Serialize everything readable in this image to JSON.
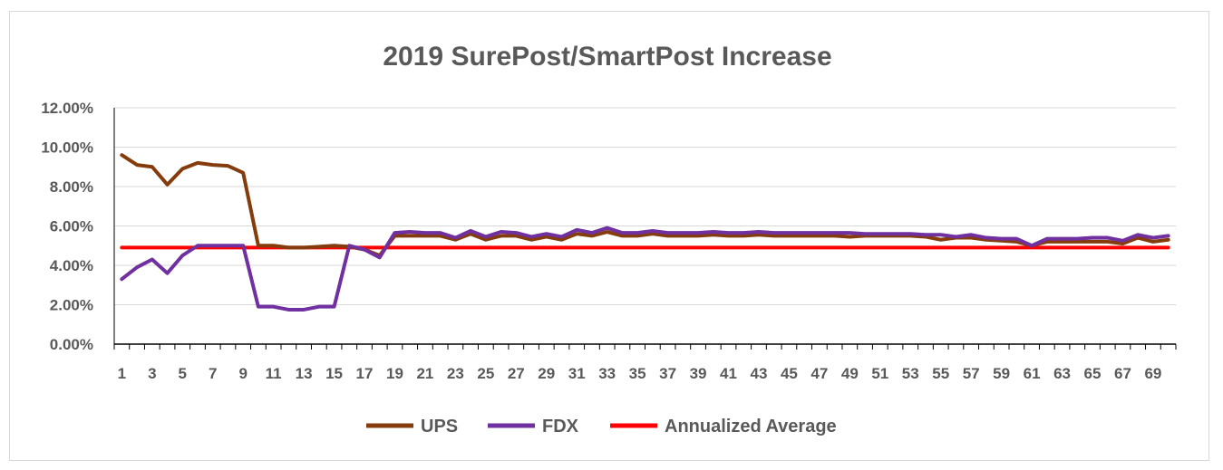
{
  "chart_data": {
    "type": "line",
    "title": "2019 SurePost/SmartPost Increase",
    "xlabel": "",
    "ylabel": "",
    "x_tick_labels": [
      "1",
      "3",
      "5",
      "7",
      "9",
      "11",
      "13",
      "15",
      "17",
      "19",
      "21",
      "23",
      "25",
      "27",
      "29",
      "31",
      "33",
      "35",
      "37",
      "39",
      "41",
      "43",
      "45",
      "47",
      "49",
      "51",
      "53",
      "55",
      "57",
      "59",
      "61",
      "63",
      "65",
      "67",
      "69"
    ],
    "y_tick_labels": [
      "0.00%",
      "2.00%",
      "4.00%",
      "6.00%",
      "8.00%",
      "10.00%",
      "12.00%"
    ],
    "ylim": [
      0,
      12
    ],
    "x": [
      1,
      2,
      3,
      4,
      5,
      6,
      7,
      8,
      9,
      10,
      11,
      12,
      13,
      14,
      15,
      16,
      17,
      18,
      19,
      20,
      21,
      22,
      23,
      24,
      25,
      26,
      27,
      28,
      29,
      30,
      31,
      32,
      33,
      34,
      35,
      36,
      37,
      38,
      39,
      40,
      41,
      42,
      43,
      44,
      45,
      46,
      47,
      48,
      49,
      50,
      51,
      52,
      53,
      54,
      55,
      56,
      57,
      58,
      59,
      60,
      61,
      62,
      63,
      64,
      65,
      66,
      67,
      68,
      69,
      70
    ],
    "series": [
      {
        "name": "UPS",
        "color": "#843c0c",
        "values": [
          9.6,
          9.1,
          9.0,
          8.1,
          8.9,
          9.2,
          9.1,
          9.05,
          8.7,
          5.0,
          5.0,
          4.9,
          4.9,
          4.95,
          5.0,
          4.95,
          4.8,
          4.5,
          5.5,
          5.5,
          5.5,
          5.5,
          5.3,
          5.6,
          5.3,
          5.5,
          5.5,
          5.3,
          5.45,
          5.3,
          5.6,
          5.5,
          5.7,
          5.5,
          5.5,
          5.6,
          5.5,
          5.5,
          5.5,
          5.55,
          5.5,
          5.5,
          5.55,
          5.5,
          5.5,
          5.5,
          5.5,
          5.5,
          5.45,
          5.5,
          5.5,
          5.5,
          5.5,
          5.45,
          5.3,
          5.4,
          5.4,
          5.3,
          5.25,
          5.2,
          5.0,
          5.2,
          5.2,
          5.2,
          5.2,
          5.2,
          5.1,
          5.4,
          5.2,
          5.3
        ]
      },
      {
        "name": "FDX",
        "color": "#7030a0",
        "values": [
          3.3,
          3.9,
          4.3,
          3.6,
          4.5,
          5.0,
          5.0,
          5.0,
          5.0,
          1.9,
          1.9,
          1.75,
          1.75,
          1.9,
          1.9,
          5.0,
          4.8,
          4.4,
          5.65,
          5.7,
          5.65,
          5.65,
          5.4,
          5.75,
          5.45,
          5.7,
          5.65,
          5.45,
          5.6,
          5.45,
          5.8,
          5.65,
          5.9,
          5.65,
          5.65,
          5.75,
          5.65,
          5.65,
          5.65,
          5.7,
          5.65,
          5.65,
          5.7,
          5.65,
          5.65,
          5.65,
          5.65,
          5.65,
          5.65,
          5.6,
          5.6,
          5.6,
          5.6,
          5.55,
          5.55,
          5.45,
          5.55,
          5.4,
          5.35,
          5.35,
          5.0,
          5.35,
          5.35,
          5.35,
          5.4,
          5.4,
          5.25,
          5.55,
          5.4,
          5.5
        ]
      },
      {
        "name": "Annualized Average",
        "color": "#ff0000",
        "values": [
          4.9,
          4.9,
          4.9,
          4.9,
          4.9,
          4.9,
          4.9,
          4.9,
          4.9,
          4.9,
          4.9,
          4.9,
          4.9,
          4.9,
          4.9,
          4.9,
          4.9,
          4.9,
          4.9,
          4.9,
          4.9,
          4.9,
          4.9,
          4.9,
          4.9,
          4.9,
          4.9,
          4.9,
          4.9,
          4.9,
          4.9,
          4.9,
          4.9,
          4.9,
          4.9,
          4.9,
          4.9,
          4.9,
          4.9,
          4.9,
          4.9,
          4.9,
          4.9,
          4.9,
          4.9,
          4.9,
          4.9,
          4.9,
          4.9,
          4.9,
          4.9,
          4.9,
          4.9,
          4.9,
          4.9,
          4.9,
          4.9,
          4.9,
          4.9,
          4.9,
          4.9,
          4.9,
          4.9,
          4.9,
          4.9,
          4.9,
          4.9,
          4.9,
          4.9,
          4.9
        ]
      }
    ],
    "grid": true,
    "legend": "bottom"
  }
}
